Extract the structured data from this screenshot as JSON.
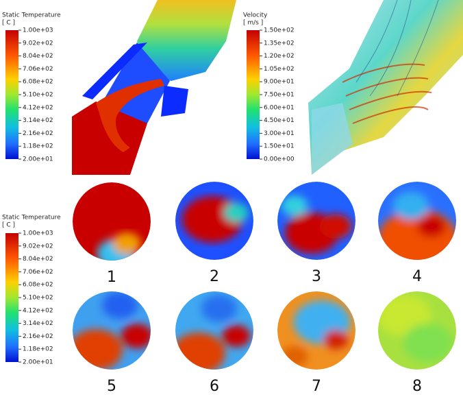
{
  "legends": [
    {
      "title": "Static Temperature",
      "unit": "[ C ]",
      "ticks": [
        "1.00e+03",
        "9.02e+02",
        "8.04e+02",
        "7.06e+02",
        "6.08e+02",
        "5.10e+02",
        "4.12e+02",
        "3.14e+02",
        "2.16e+02",
        "1.18e+02",
        "2.00e+01"
      ]
    },
    {
      "title": "Velocity",
      "unit": "[ m/s ]",
      "ticks": [
        "1.50e+02",
        "1.35e+02",
        "1.20e+02",
        "1.05e+02",
        "9.00e+01",
        "7.50e+01",
        "6.00e+01",
        "4.50e+01",
        "3.00e+01",
        "1.50e+01",
        "0.00e+00"
      ]
    },
    {
      "title": "Static Temperature",
      "unit": "[ C ]",
      "ticks": [
        "1.00e+03",
        "9.02e+02",
        "8.04e+02",
        "7.06e+02",
        "6.08e+02",
        "5.10e+02",
        "4.12e+02",
        "3.14e+02",
        "2.16e+02",
        "1.18e+02",
        "2.00e+01"
      ]
    }
  ],
  "sections": [
    "1",
    "2",
    "3",
    "4",
    "5",
    "6",
    "7",
    "8"
  ]
}
